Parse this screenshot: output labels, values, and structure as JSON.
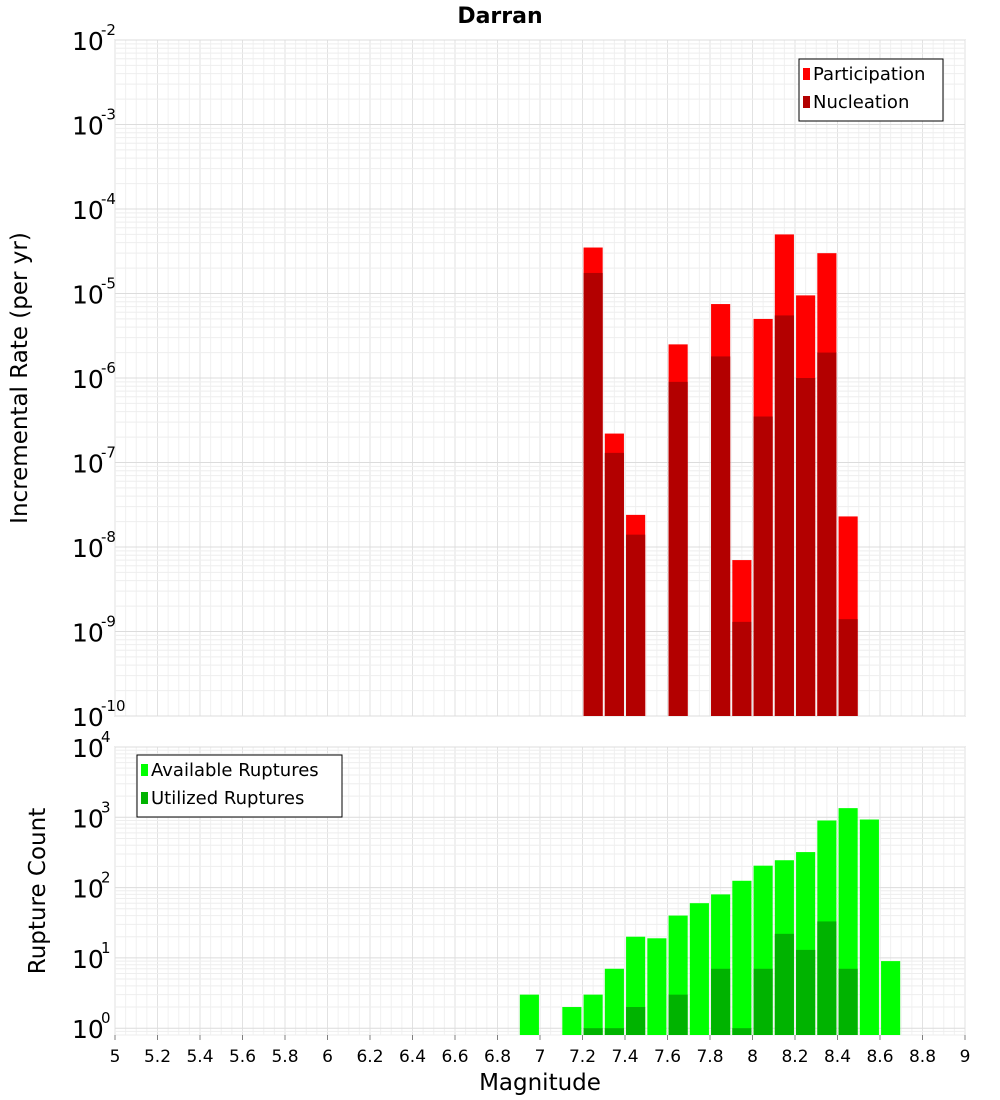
{
  "chart_data": [
    {
      "type": "bar",
      "title": "Darran",
      "ylabel": "Incremental Rate (per yr)",
      "yscale": "log",
      "ylim": [
        1e-10,
        0.01
      ],
      "xlim": [
        5,
        9
      ],
      "bar_width": 0.09,
      "grid": true,
      "legend": "top-right",
      "ytick_labels": [
        {
          "value": 1e-10,
          "base": "10",
          "exp": "-10"
        },
        {
          "value": 1e-09,
          "base": "10",
          "exp": "-9"
        },
        {
          "value": 1e-08,
          "base": "10",
          "exp": "-8"
        },
        {
          "value": 1e-07,
          "base": "10",
          "exp": "-7"
        },
        {
          "value": 1e-06,
          "base": "10",
          "exp": "-6"
        },
        {
          "value": 1e-05,
          "base": "10",
          "exp": "-5"
        },
        {
          "value": 0.0001,
          "base": "10",
          "exp": "-4"
        },
        {
          "value": 0.001,
          "base": "10",
          "exp": "-3"
        },
        {
          "value": 0.01,
          "base": "10",
          "exp": "-2"
        }
      ],
      "series": [
        {
          "name": "Participation",
          "color": "#ff0000",
          "points": [
            {
              "x": 7.25,
              "y": 3.5e-05
            },
            {
              "x": 7.35,
              "y": 2.2e-07
            },
            {
              "x": 7.45,
              "y": 2.4e-08
            },
            {
              "x": 7.65,
              "y": 2.5e-06
            },
            {
              "x": 7.85,
              "y": 7.5e-06
            },
            {
              "x": 7.95,
              "y": 7e-09
            },
            {
              "x": 8.05,
              "y": 5e-06
            },
            {
              "x": 8.15,
              "y": 5e-05
            },
            {
              "x": 8.25,
              "y": 9.5e-06
            },
            {
              "x": 8.35,
              "y": 3e-05
            },
            {
              "x": 8.45,
              "y": 2.3e-08
            }
          ]
        },
        {
          "name": "Nucleation",
          "color": "#b30000",
          "points": [
            {
              "x": 7.25,
              "y": 1.75e-05
            },
            {
              "x": 7.35,
              "y": 1.3e-07
            },
            {
              "x": 7.45,
              "y": 1.4e-08
            },
            {
              "x": 7.65,
              "y": 9e-07
            },
            {
              "x": 7.85,
              "y": 1.8e-06
            },
            {
              "x": 7.95,
              "y": 1.3e-09
            },
            {
              "x": 8.05,
              "y": 3.5e-07
            },
            {
              "x": 8.15,
              "y": 5.5e-06
            },
            {
              "x": 8.25,
              "y": 1e-06
            },
            {
              "x": 8.35,
              "y": 2e-06
            },
            {
              "x": 8.45,
              "y": 1.4e-09
            }
          ]
        }
      ]
    },
    {
      "type": "bar",
      "xlabel": "Magnitude",
      "ylabel": "Rupture Count",
      "yscale": "log",
      "ylim": [
        0.8,
        10000
      ],
      "xlim": [
        5,
        9
      ],
      "bar_width": 0.09,
      "grid": true,
      "legend": "top-left",
      "xticks": [
        "5",
        "5.2",
        "5.4",
        "5.6",
        "5.8",
        "6",
        "6.2",
        "6.4",
        "6.6",
        "6.8",
        "7",
        "7.2",
        "7.4",
        "7.6",
        "7.8",
        "8",
        "8.2",
        "8.4",
        "8.6",
        "8.8",
        "9"
      ],
      "ytick_labels": [
        {
          "value": 1,
          "base": "10",
          "exp": "0"
        },
        {
          "value": 10,
          "base": "10",
          "exp": "1"
        },
        {
          "value": 100,
          "base": "10",
          "exp": "2"
        },
        {
          "value": 1000,
          "base": "10",
          "exp": "3"
        },
        {
          "value": 10000,
          "base": "10",
          "exp": "4"
        }
      ],
      "series": [
        {
          "name": "Available Ruptures",
          "color": "#00ff00",
          "points": [
            {
              "x": 6.95,
              "y": 3
            },
            {
              "x": 7.15,
              "y": 2
            },
            {
              "x": 7.25,
              "y": 3
            },
            {
              "x": 7.35,
              "y": 7
            },
            {
              "x": 7.45,
              "y": 20
            },
            {
              "x": 7.55,
              "y": 19
            },
            {
              "x": 7.65,
              "y": 40
            },
            {
              "x": 7.75,
              "y": 60
            },
            {
              "x": 7.85,
              "y": 80
            },
            {
              "x": 7.95,
              "y": 125
            },
            {
              "x": 8.05,
              "y": 205
            },
            {
              "x": 8.15,
              "y": 245
            },
            {
              "x": 8.25,
              "y": 320
            },
            {
              "x": 8.35,
              "y": 900
            },
            {
              "x": 8.45,
              "y": 1350
            },
            {
              "x": 8.55,
              "y": 930
            },
            {
              "x": 8.65,
              "y": 9
            }
          ]
        },
        {
          "name": "Utilized Ruptures",
          "color": "#00b300",
          "points": [
            {
              "x": 7.25,
              "y": 1
            },
            {
              "x": 7.35,
              "y": 1
            },
            {
              "x": 7.45,
              "y": 2
            },
            {
              "x": 7.65,
              "y": 3
            },
            {
              "x": 7.85,
              "y": 7
            },
            {
              "x": 7.95,
              "y": 1
            },
            {
              "x": 8.05,
              "y": 7
            },
            {
              "x": 8.15,
              "y": 22
            },
            {
              "x": 8.25,
              "y": 13
            },
            {
              "x": 8.35,
              "y": 33
            },
            {
              "x": 8.45,
              "y": 7
            }
          ]
        }
      ]
    }
  ]
}
